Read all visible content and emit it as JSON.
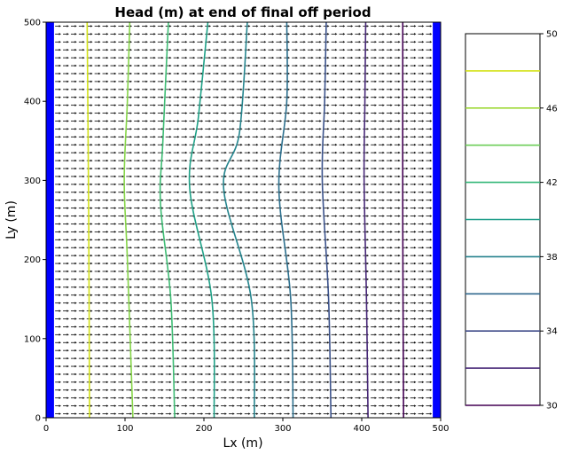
{
  "chart_data": {
    "type": "contour",
    "title": "Head (m) at end of final off period",
    "xlabel": "Lx (m)",
    "ylabel": "Ly (m)",
    "xlim": [
      0,
      500
    ],
    "ylim": [
      0,
      500
    ],
    "xticks": [
      "0",
      "100",
      "200",
      "300",
      "400",
      "500"
    ],
    "yticks": [
      "0",
      "100",
      "200",
      "300",
      "400",
      "500"
    ],
    "grid": false,
    "boundaries": [
      {
        "side": "left",
        "x_range": [
          0,
          10
        ],
        "color": "#0000ff"
      },
      {
        "side": "right",
        "x_range": [
          490,
          500
        ],
        "color": "#0000ff"
      }
    ],
    "vector_field": {
      "direction": "+x",
      "color": "#000000"
    },
    "contours": [
      {
        "level": 48,
        "color": "#d4e21a",
        "points": [
          [
            55,
            0
          ],
          [
            54,
            250
          ],
          [
            52,
            500
          ]
        ]
      },
      {
        "level": 46,
        "color": "#86d549",
        "points": [
          [
            110,
            0
          ],
          [
            103,
            200
          ],
          [
            99,
            300
          ],
          [
            103,
            400
          ],
          [
            106,
            500
          ]
        ]
      },
      {
        "level": 44,
        "color": "#3ebc74",
        "points": [
          [
            163,
            0
          ],
          [
            158,
            150
          ],
          [
            145,
            270
          ],
          [
            148,
            350
          ],
          [
            155,
            500
          ]
        ]
      },
      {
        "level": 42,
        "color": "#1fa187",
        "points": [
          [
            213,
            0
          ],
          [
            210,
            150
          ],
          [
            182,
            290
          ],
          [
            193,
            380
          ],
          [
            205,
            500
          ]
        ]
      },
      {
        "level": 40,
        "color": "#25858e",
        "points": [
          [
            264,
            0
          ],
          [
            260,
            150
          ],
          [
            225,
            290
          ],
          [
            245,
            360
          ],
          [
            255,
            500
          ]
        ]
      },
      {
        "level": 38,
        "color": "#2d708e",
        "points": [
          [
            313,
            0
          ],
          [
            310,
            150
          ],
          [
            295,
            290
          ],
          [
            305,
            400
          ],
          [
            305,
            500
          ]
        ]
      },
      {
        "level": 36,
        "color": "#3b528b",
        "points": [
          [
            361,
            0
          ],
          [
            358,
            150
          ],
          [
            350,
            300
          ],
          [
            353,
            400
          ],
          [
            355,
            500
          ]
        ]
      },
      {
        "level": 34,
        "color": "#482878",
        "points": [
          [
            408,
            0
          ],
          [
            406,
            150
          ],
          [
            403,
            300
          ],
          [
            404,
            400
          ],
          [
            405,
            500
          ]
        ]
      },
      {
        "level": 32,
        "color": "#440154",
        "points": [
          [
            453,
            0
          ],
          [
            452,
            250
          ],
          [
            452,
            500
          ]
        ]
      }
    ],
    "colorbar": {
      "range": [
        30,
        50
      ],
      "ticks": [
        "30",
        "34",
        "38",
        "42",
        "46",
        "50"
      ],
      "levels": [
        {
          "value": 30,
          "color": "#440154"
        },
        {
          "value": 32,
          "color": "#482878"
        },
        {
          "value": 34,
          "color": "#3e4a89"
        },
        {
          "value": 36,
          "color": "#31688e"
        },
        {
          "value": 38,
          "color": "#26828e"
        },
        {
          "value": 40,
          "color": "#1f9e89"
        },
        {
          "value": 42,
          "color": "#35b779"
        },
        {
          "value": 44,
          "color": "#6ece58"
        },
        {
          "value": 46,
          "color": "#9fd938"
        },
        {
          "value": 48,
          "color": "#d4e21a"
        }
      ]
    }
  }
}
